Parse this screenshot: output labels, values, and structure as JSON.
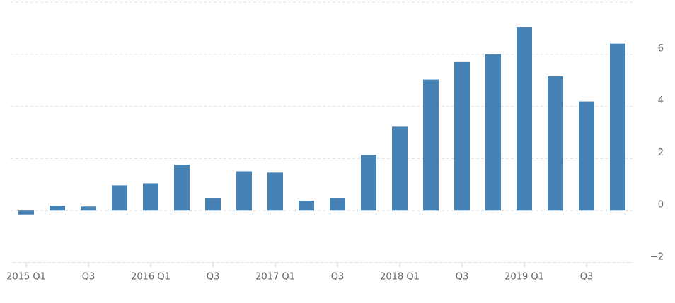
{
  "chart_data": {
    "type": "bar",
    "categories": [
      "2015 Q1",
      null,
      "Q3",
      null,
      "2016 Q1",
      null,
      "Q3",
      null,
      "2017 Q1",
      null,
      "Q3",
      null,
      "2018 Q1",
      null,
      "Q3",
      null,
      "2019 Q1",
      null,
      "Q3",
      null
    ],
    "values": [
      -0.15,
      0.19,
      0.16,
      0.97,
      1.05,
      1.76,
      0.49,
      1.51,
      1.46,
      0.38,
      0.49,
      2.14,
      3.22,
      5.03,
      5.7,
      6.0,
      7.05,
      5.16,
      4.19,
      6.41
    ],
    "color": "#4682b4",
    "ylim": [
      -2,
      8
    ],
    "yticks": [
      {
        "value": -2,
        "label": "−2"
      },
      0,
      2,
      4,
      6
    ],
    "grid": true
  }
}
